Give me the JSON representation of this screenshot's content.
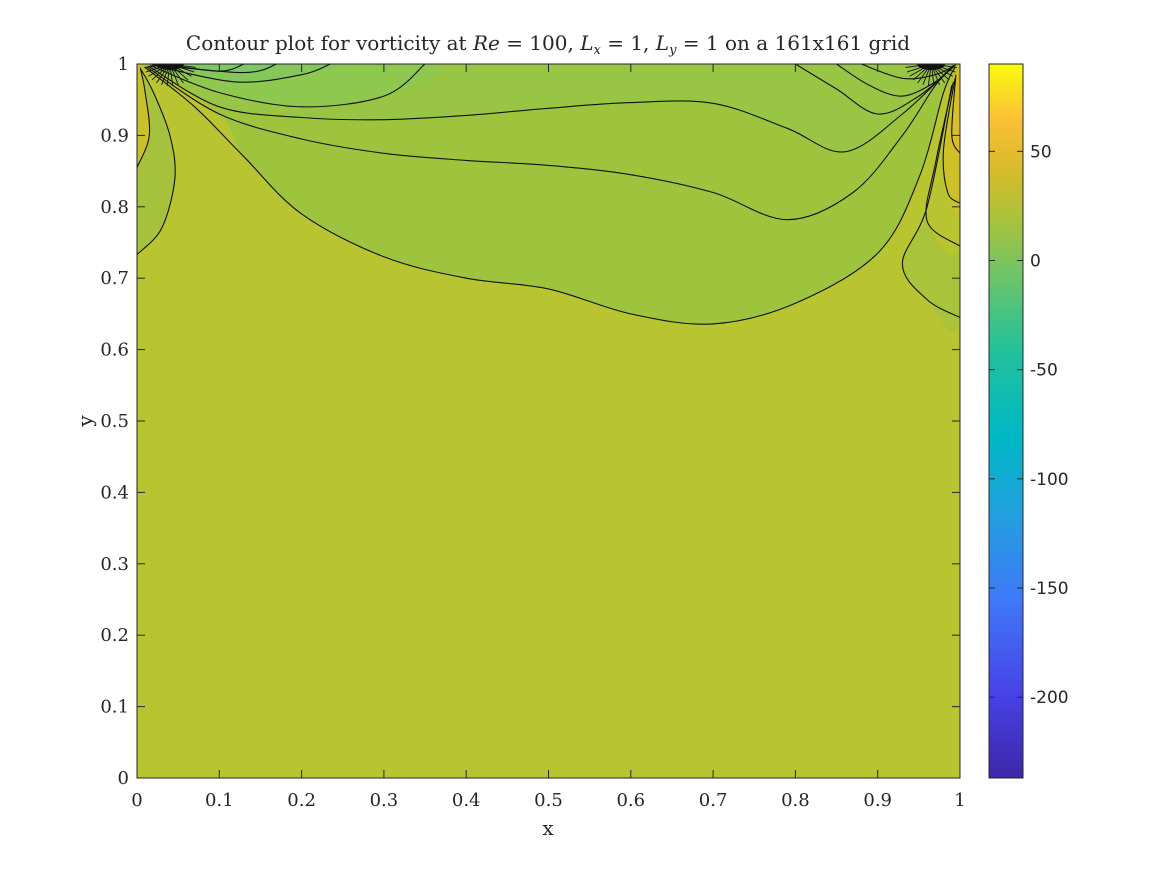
{
  "chart_data": {
    "type": "contour",
    "title": {
      "prefix": "Contour plot for vorticity at ",
      "re_sym": "Re",
      "re_val": " = 100, ",
      "lx_sym": "L",
      "lx_sub": "x",
      "lx_val": " = 1, ",
      "ly_sym": "L",
      "ly_sub": "y",
      "ly_val": " = 1",
      "suffix": " on a 161x161 grid"
    },
    "xlabel": "x",
    "ylabel": "y",
    "xlim": [
      0,
      1
    ],
    "ylim": [
      0,
      1
    ],
    "xticks": [
      "0",
      "0.1",
      "0.2",
      "0.3",
      "0.4",
      "0.5",
      "0.6",
      "0.7",
      "0.8",
      "0.9",
      "1"
    ],
    "yticks": [
      "0",
      "0.1",
      "0.2",
      "0.3",
      "0.4",
      "0.5",
      "0.6",
      "0.7",
      "0.8",
      "0.9",
      "1"
    ],
    "colorbar": {
      "range": [
        -237,
        90
      ],
      "ticks": [
        50,
        0,
        -50,
        -100,
        -150,
        -200
      ],
      "tick_labels": [
        "50",
        "0",
        "-50",
        "-100",
        "-150",
        "-200"
      ],
      "colormap": "parula"
    },
    "background_color": "#b9c431",
    "contours": [
      {
        "points": [
          [
            0.0,
            0.733
          ],
          [
            0.03,
            0.77
          ],
          [
            0.046,
            0.84
          ],
          [
            0.04,
            0.9
          ],
          [
            0.02,
            0.96
          ],
          [
            0.005,
            0.992
          ]
        ]
      },
      {
        "points": [
          [
            0.0,
            0.855
          ],
          [
            0.015,
            0.9
          ],
          [
            0.01,
            0.96
          ],
          [
            0.004,
            0.995
          ]
        ]
      },
      {
        "points": [
          [
            0.01,
            0.995
          ],
          [
            0.07,
            0.94
          ],
          [
            0.13,
            0.87
          ],
          [
            0.2,
            0.79
          ],
          [
            0.3,
            0.73
          ],
          [
            0.4,
            0.7
          ],
          [
            0.5,
            0.685
          ],
          [
            0.6,
            0.65
          ],
          [
            0.7,
            0.636
          ],
          [
            0.8,
            0.665
          ],
          [
            0.9,
            0.735
          ],
          [
            0.95,
            0.84
          ],
          [
            0.98,
            0.96
          ],
          [
            0.994,
            0.996
          ]
        ]
      },
      {
        "points": [
          [
            0.012,
            0.996
          ],
          [
            0.1,
            0.93
          ],
          [
            0.2,
            0.895
          ],
          [
            0.3,
            0.875
          ],
          [
            0.4,
            0.865
          ],
          [
            0.5,
            0.858
          ],
          [
            0.6,
            0.845
          ],
          [
            0.7,
            0.82
          ],
          [
            0.79,
            0.782
          ],
          [
            0.87,
            0.82
          ],
          [
            0.93,
            0.9
          ],
          [
            0.97,
            0.97
          ],
          [
            0.993,
            0.997
          ]
        ]
      },
      {
        "points": [
          [
            0.014,
            0.997
          ],
          [
            0.1,
            0.94
          ],
          [
            0.2,
            0.925
          ],
          [
            0.3,
            0.922
          ],
          [
            0.4,
            0.928
          ],
          [
            0.5,
            0.938
          ],
          [
            0.6,
            0.946
          ],
          [
            0.7,
            0.945
          ],
          [
            0.79,
            0.91
          ],
          [
            0.86,
            0.877
          ],
          [
            0.93,
            0.93
          ],
          [
            0.992,
            0.998
          ]
        ]
      },
      {
        "points": [
          [
            0.016,
            0.998
          ],
          [
            0.1,
            0.96
          ],
          [
            0.2,
            0.94
          ],
          [
            0.3,
            0.955
          ],
          [
            0.35,
            1.0
          ]
        ]
      },
      {
        "points": [
          [
            0.018,
            0.999
          ],
          [
            0.12,
            0.975
          ],
          [
            0.2,
            0.985
          ],
          [
            0.235,
            1.0
          ]
        ]
      },
      {
        "points": [
          [
            0.02,
            0.999
          ],
          [
            0.13,
            0.988
          ],
          [
            0.17,
            1.0
          ]
        ]
      },
      {
        "points": [
          [
            0.03,
            1.0
          ],
          [
            0.1,
            0.99
          ],
          [
            0.13,
            1.0
          ]
        ]
      },
      {
        "points": [
          [
            0.8,
            1.0
          ],
          [
            0.85,
            0.965
          ],
          [
            0.9,
            0.93
          ],
          [
            0.95,
            0.955
          ],
          [
            0.99,
            0.995
          ]
        ]
      },
      {
        "points": [
          [
            0.85,
            1.0
          ],
          [
            0.89,
            0.97
          ],
          [
            0.93,
            0.955
          ],
          [
            0.97,
            0.975
          ],
          [
            0.993,
            0.998
          ]
        ]
      },
      {
        "points": [
          [
            0.88,
            1.0
          ],
          [
            0.93,
            0.98
          ],
          [
            0.97,
            0.985
          ],
          [
            0.995,
            0.999
          ]
        ]
      },
      {
        "points": [
          [
            0.99,
            0.97
          ],
          [
            0.96,
            0.8
          ],
          [
            0.93,
            0.72
          ],
          [
            0.96,
            0.67
          ],
          [
            1.0,
            0.645
          ]
        ]
      },
      {
        "points": [
          [
            0.992,
            0.975
          ],
          [
            0.97,
            0.86
          ],
          [
            0.96,
            0.78
          ],
          [
            1.0,
            0.745
          ]
        ]
      },
      {
        "points": [
          [
            0.994,
            0.98
          ],
          [
            0.98,
            0.88
          ],
          [
            0.985,
            0.82
          ],
          [
            1.0,
            0.805
          ]
        ]
      },
      {
        "points": [
          [
            0.995,
            0.985
          ],
          [
            0.99,
            0.9
          ],
          [
            1.0,
            0.875
          ]
        ]
      }
    ],
    "regions": [
      {
        "color": "#9ec43e",
        "points": [
          [
            0.012,
            0.996
          ],
          [
            0.1,
            0.93
          ],
          [
            0.13,
            0.87
          ],
          [
            0.2,
            0.79
          ],
          [
            0.3,
            0.73
          ],
          [
            0.4,
            0.7
          ],
          [
            0.5,
            0.685
          ],
          [
            0.6,
            0.65
          ],
          [
            0.7,
            0.636
          ],
          [
            0.8,
            0.665
          ],
          [
            0.9,
            0.735
          ],
          [
            0.95,
            0.84
          ],
          [
            0.98,
            0.96
          ],
          [
            0.994,
            0.996
          ],
          [
            0.994,
            1.0
          ],
          [
            0.012,
            1.0
          ]
        ]
      },
      {
        "color": "#98c544",
        "points": [
          [
            0.014,
            0.997
          ],
          [
            0.1,
            0.94
          ],
          [
            0.2,
            0.925
          ],
          [
            0.3,
            0.922
          ],
          [
            0.4,
            0.928
          ],
          [
            0.5,
            0.938
          ],
          [
            0.6,
            0.946
          ],
          [
            0.7,
            0.945
          ],
          [
            0.79,
            0.91
          ],
          [
            0.86,
            0.877
          ],
          [
            0.93,
            0.93
          ],
          [
            0.992,
            0.998
          ],
          [
            0.992,
            1.0
          ],
          [
            0.014,
            1.0
          ]
        ]
      },
      {
        "color": "#8fc84f",
        "points": [
          [
            0.016,
            0.998
          ],
          [
            0.1,
            0.96
          ],
          [
            0.2,
            0.94
          ],
          [
            0.3,
            0.955
          ],
          [
            0.35,
            1.0
          ],
          [
            0.016,
            1.0
          ]
        ]
      },
      {
        "color": "#85c75a",
        "points": [
          [
            0.018,
            0.999
          ],
          [
            0.12,
            0.975
          ],
          [
            0.2,
            0.985
          ],
          [
            0.235,
            1.0
          ],
          [
            0.018,
            1.0
          ]
        ]
      },
      {
        "color": "#7bc865",
        "points": [
          [
            0.02,
            0.999
          ],
          [
            0.13,
            0.988
          ],
          [
            0.17,
            1.0
          ],
          [
            0.02,
            1.0
          ]
        ]
      },
      {
        "color": "#a6c23c",
        "points": [
          [
            0.0,
            0.733
          ],
          [
            0.03,
            0.77
          ],
          [
            0.046,
            0.84
          ],
          [
            0.04,
            0.9
          ],
          [
            0.02,
            0.96
          ],
          [
            0.005,
            0.992
          ],
          [
            0.0,
            1.0
          ]
        ]
      },
      {
        "color": "#c8c12a",
        "points": [
          [
            0.0,
            0.855
          ],
          [
            0.015,
            0.9
          ],
          [
            0.01,
            0.96
          ],
          [
            0.004,
            0.995
          ],
          [
            0.0,
            1.0
          ]
        ]
      },
      {
        "color": "#a9c43a",
        "points": [
          [
            0.99,
            0.97
          ],
          [
            0.96,
            0.8
          ],
          [
            0.93,
            0.72
          ],
          [
            0.96,
            0.67
          ],
          [
            1.0,
            0.645
          ],
          [
            1.0,
            1.0
          ]
        ]
      },
      {
        "color": "#b8c430",
        "points": [
          [
            0.992,
            0.975
          ],
          [
            0.97,
            0.86
          ],
          [
            0.96,
            0.78
          ],
          [
            1.0,
            0.745
          ],
          [
            1.0,
            1.0
          ]
        ]
      },
      {
        "color": "#cfc02a",
        "points": [
          [
            0.994,
            0.98
          ],
          [
            0.98,
            0.88
          ],
          [
            0.985,
            0.82
          ],
          [
            1.0,
            0.805
          ],
          [
            1.0,
            1.0
          ]
        ]
      },
      {
        "color": "#d9bd2a",
        "points": [
          [
            0.995,
            0.985
          ],
          [
            0.99,
            0.9
          ],
          [
            1.0,
            0.875
          ],
          [
            1.0,
            1.0
          ]
        ]
      }
    ]
  }
}
